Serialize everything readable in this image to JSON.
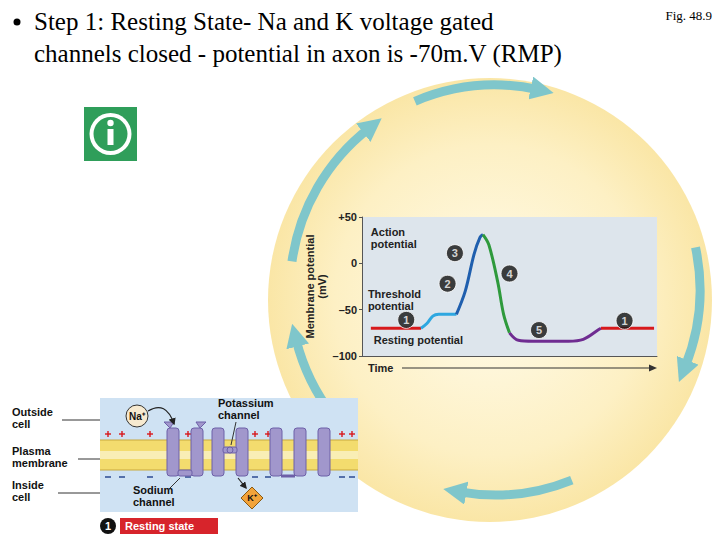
{
  "slide": {
    "bullet_lines": [
      "Step 1: Resting State- Na and K voltage gated",
      "channels closed - potential in axon is -70m.V (RMP)"
    ],
    "figure_label": "Fig. 48.9"
  },
  "chart_data": {
    "type": "line",
    "y_label": "Membrane potential (mV)",
    "x_label": "Time",
    "xlim": [
      0,
      100
    ],
    "ylim": [
      -100,
      50
    ],
    "yticks": [
      {
        "value": -100,
        "label": "–100"
      },
      {
        "value": -50,
        "label": "–50"
      },
      0,
      {
        "value": 50,
        "label": "+50"
      }
    ],
    "tick_labels": "y",
    "grid": false,
    "series": [
      {
        "color": "#d7191c",
        "x": [
          3,
          20
        ],
        "values": [
          -70,
          -70
        ]
      },
      {
        "color": "#2ea7e0",
        "x": [
          20,
          22,
          24,
          26,
          32
        ],
        "values": [
          -70,
          -65,
          -57,
          -55,
          -55
        ]
      },
      {
        "color": "#1f5fae",
        "x": [
          32,
          35,
          38,
          40,
          41
        ],
        "values": [
          -55,
          -30,
          10,
          28,
          31
        ]
      },
      {
        "color": "#2e9a3c",
        "x": [
          41,
          43,
          46,
          48,
          50
        ],
        "values": [
          31,
          20,
          -20,
          -55,
          -75
        ]
      },
      {
        "color": "#6f2c91",
        "x": [
          50,
          53,
          58,
          70,
          75,
          80,
          81
        ],
        "values": [
          -75,
          -83,
          -84,
          -84,
          -82,
          -72,
          -70
        ]
      },
      {
        "color": "#d7191c",
        "x": [
          81,
          99
        ],
        "values": [
          -70,
          -70
        ]
      }
    ],
    "markers": [
      {
        "label": "1",
        "x": 15,
        "y": -61
      },
      {
        "label": "2",
        "x": 29,
        "y": -22
      },
      {
        "label": "3",
        "x": 31.5,
        "y": 11
      },
      {
        "label": "4",
        "x": 50,
        "y": -11
      },
      {
        "label": "5",
        "x": 60,
        "y": -72
      },
      {
        "label": "1",
        "x": 89,
        "y": -62
      }
    ],
    "annotations": [
      {
        "lines": [
          "Action",
          "potential"
        ],
        "x": 3,
        "y": 40
      },
      {
        "lines": [
          "Threshold",
          "potential"
        ],
        "x": 2,
        "y": -27
      },
      {
        "lines": [
          "Resting potential"
        ],
        "x": 4,
        "y": -76
      }
    ]
  },
  "membrane": {
    "outside_label": [
      "Outside",
      "cell"
    ],
    "membrane_label": [
      "Plasma",
      "membrane"
    ],
    "inside_label": [
      "Inside",
      "cell"
    ],
    "ion_outside": "Na⁺",
    "potassium_channel": [
      "Potassium",
      "channel"
    ],
    "sodium_channel": [
      "Sodium",
      "channel"
    ],
    "ion_inside": "K⁺",
    "step_number": "1",
    "step_name": "Resting state"
  }
}
